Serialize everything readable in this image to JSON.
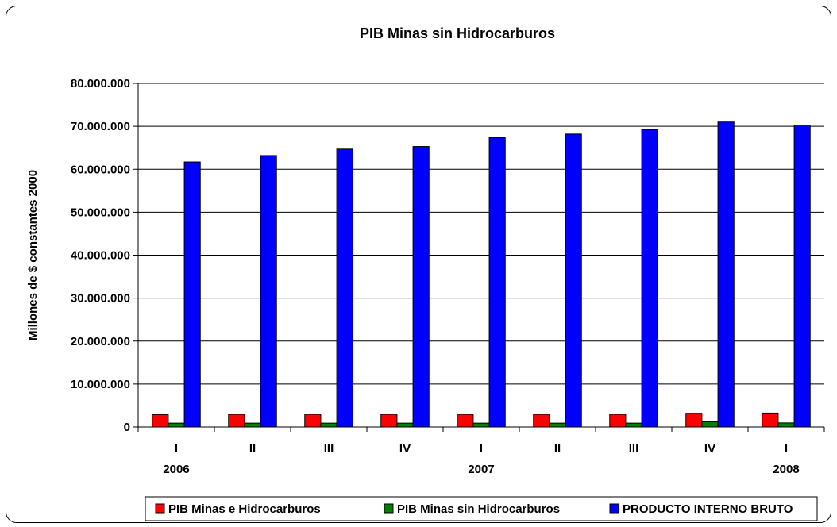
{
  "chart_data": {
    "type": "bar",
    "title": "PIB Minas sin Hidrocarburos",
    "xlabel": "",
    "ylabel": "Millones de $ constantes 2000",
    "ylim": [
      0,
      80000000
    ],
    "ytick_labels": [
      "0",
      "10.000.000",
      "20.000.000",
      "30.000.000",
      "40.000.000",
      "50.000.000",
      "60.000.000",
      "70.000.000",
      "80.000.000"
    ],
    "categories": [
      "I",
      "II",
      "III",
      "IV",
      "I",
      "II",
      "III",
      "IV",
      "I"
    ],
    "year_labels": [
      {
        "index": 0,
        "label": "2006"
      },
      {
        "index": 4,
        "label": "2007"
      },
      {
        "index": 8,
        "label": "2008"
      }
    ],
    "grid": true,
    "legend_position": "bottom",
    "series": [
      {
        "name": "PIB Minas e Hidrocarburos",
        "color": "#ff0000",
        "values": [
          2900000,
          2950000,
          2950000,
          2950000,
          2950000,
          2950000,
          2950000,
          3200000,
          3250000
        ]
      },
      {
        "name": "PIB Minas sin Hidrocarburos",
        "color": "#008000",
        "values": [
          900000,
          900000,
          900000,
          900000,
          900000,
          900000,
          900000,
          1200000,
          950000
        ]
      },
      {
        "name": "PRODUCTO INTERNO BRUTO",
        "color": "#0000ff",
        "values": [
          61700000,
          63200000,
          64700000,
          65300000,
          67400000,
          68200000,
          69200000,
          71000000,
          70300000
        ]
      }
    ]
  }
}
